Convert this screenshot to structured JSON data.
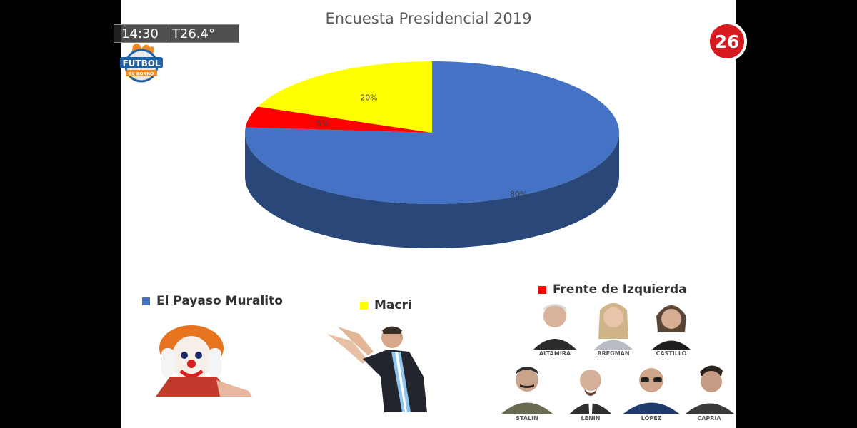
{
  "overlay": {
    "clock": "14:30",
    "temperature": "T26.4°",
    "channel_number": "26",
    "show_logo_line1": "FUTBOL",
    "show_logo_line2": "EL BORNO"
  },
  "chart_data": {
    "type": "pie",
    "title": "Encuesta Presidencial 2019",
    "three_d": true,
    "slices": [
      {
        "label": "El Payaso Muralito",
        "value": 80,
        "data_label": "80%",
        "color": "#4472C4"
      },
      {
        "label": "Macri",
        "value": 20,
        "data_label": "20%",
        "color": "#FFFF00"
      },
      {
        "label": "Frente de Izquierda",
        "value": 5,
        "data_label": "5%",
        "color": "#FF0000"
      }
    ]
  },
  "legend": {
    "items": [
      {
        "label": "El Payaso Muralito",
        "color": "#4472C4"
      },
      {
        "label": "Macri",
        "color": "#FFFF00"
      },
      {
        "label": "Frente de Izquierda",
        "color": "#FF0000"
      }
    ]
  },
  "photos": {
    "captions": [
      "ALTAMIRA",
      "BREGMAN",
      "CASTILLO",
      "STALIN",
      "LENIN",
      "LÓPEZ",
      "CAPRIA"
    ]
  }
}
